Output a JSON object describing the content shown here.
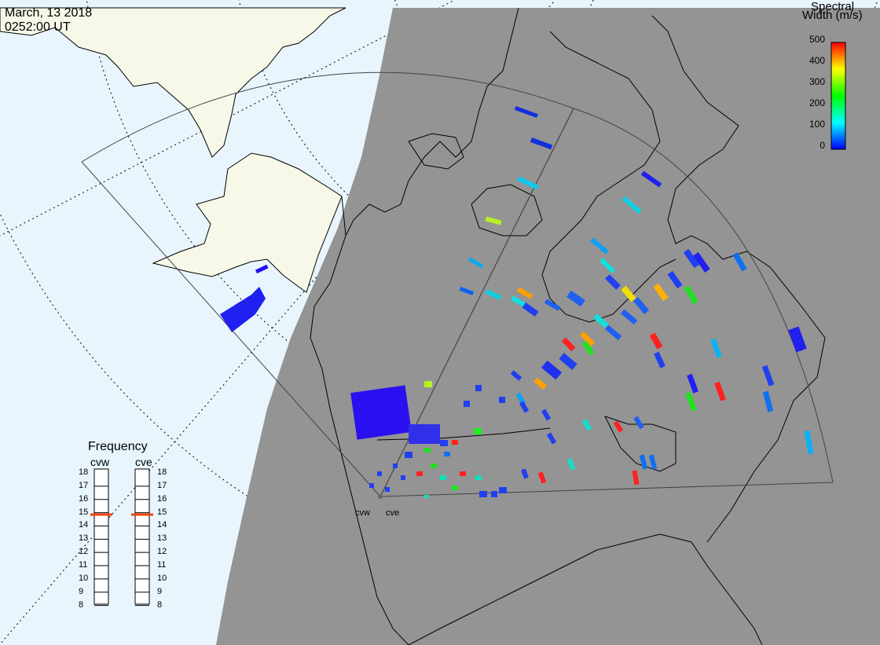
{
  "title": {
    "date": "March, 13 2018",
    "time": "0252:00 UT"
  },
  "colorbar": {
    "title_line1": "Spectral",
    "title_line2": "Width (m/s)",
    "ticks": [
      "500",
      "400",
      "300",
      "200",
      "100",
      "0"
    ],
    "range": [
      0,
      500
    ],
    "colors": [
      "#0000ff",
      "#00ffff",
      "#00ff00",
      "#ffff00",
      "#ff0000"
    ]
  },
  "frequency": {
    "title": "Frequency",
    "radars": [
      "cvw",
      "cve"
    ],
    "scale": [
      "18",
      "17",
      "16",
      "15",
      "14",
      "13",
      "12",
      "11",
      "10",
      "9",
      "8"
    ],
    "cvw_value": 15,
    "cve_value": 15
  },
  "radar_sites": [
    "cvw",
    "cve"
  ],
  "colors": {
    "ocean": "#e8f5fd",
    "land_day": "#f8f8e8",
    "night_shade": "#949494",
    "marker": "#ee4411"
  }
}
